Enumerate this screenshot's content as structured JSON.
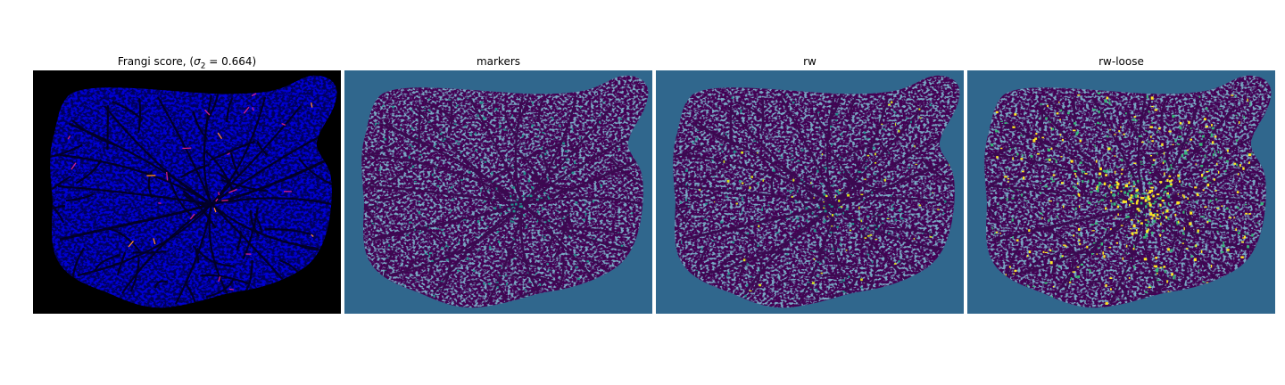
{
  "figure": {
    "panels": [
      {
        "id": "frangi",
        "title_prefix": "Frangi score, (",
        "title_symbol": "σ",
        "title_subscript": "2",
        "title_suffix": " = 0.664)",
        "colormap": "gnuplot2",
        "background_color": "#000000"
      },
      {
        "id": "markers",
        "title": "markers",
        "colormap": "viridis",
        "background_color": "#30678d"
      },
      {
        "id": "rw",
        "title": "rw",
        "colormap": "viridis",
        "background_color": "#30678d"
      },
      {
        "id": "rw-loose",
        "title": "rw-loose",
        "colormap": "viridis",
        "background_color": "#30678d"
      }
    ]
  }
}
